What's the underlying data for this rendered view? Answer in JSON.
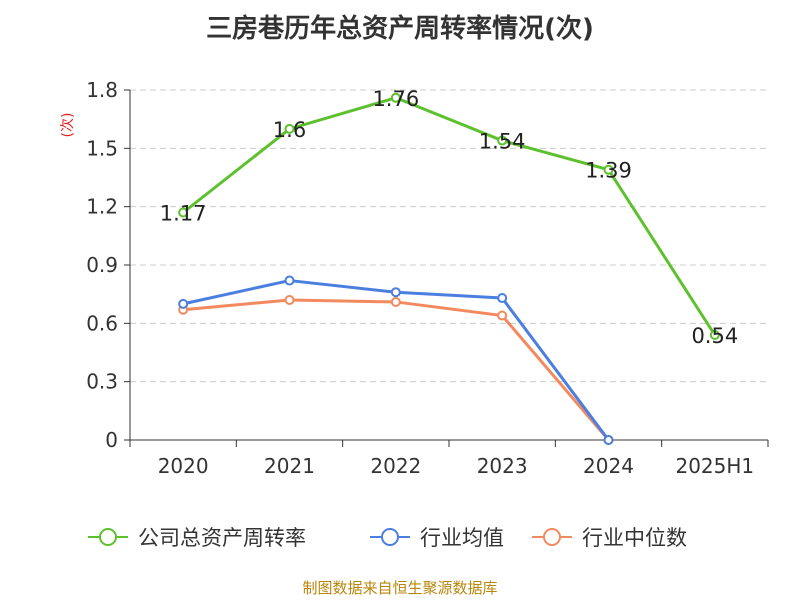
{
  "chart_data": {
    "type": "line",
    "title": "三房巷历年总资产周转率情况(次)",
    "ylabel": "(次)",
    "categories": [
      "2020",
      "2021",
      "2022",
      "2023",
      "2024",
      "2025H1"
    ],
    "yticks": [
      "0",
      "0.3",
      "0.6",
      "0.9",
      "1.2",
      "1.5",
      "1.8"
    ],
    "ylim": [
      0,
      1.8
    ],
    "grid": true,
    "legend_position": "bottom",
    "series": [
      {
        "name": "公司总资产周转率",
        "color": "#5dc12e",
        "values": [
          1.17,
          1.6,
          1.76,
          1.54,
          1.39,
          0.54
        ],
        "labels": [
          "1.17",
          "1.6",
          "1.76",
          "1.54",
          "1.39",
          "0.54"
        ]
      },
      {
        "name": "行业均值",
        "color": "#4a7fe0",
        "values": [
          0.7,
          0.82,
          0.76,
          0.73,
          0,
          null
        ]
      },
      {
        "name": "行业中位数",
        "color": "#f2895f",
        "values": [
          0.67,
          0.72,
          0.71,
          0.64,
          0,
          null
        ]
      }
    ]
  },
  "source": "制图数据来自恒生聚源数据库"
}
